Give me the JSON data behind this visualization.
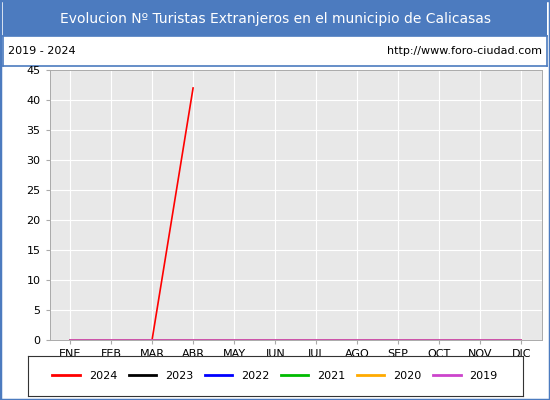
{
  "title": "Evolucion Nº Turistas Extranjeros en el municipio de Calicasas",
  "title_bg_color": "#4c7bbf",
  "title_text_color": "#ffffff",
  "subtitle_left": "2019 - 2024",
  "subtitle_right": "http://www.foro-ciudad.com",
  "subtitle_bg_color": "#ffffff",
  "subtitle_text_color": "#000000",
  "plot_bg_color": "#e8e8e8",
  "x_labels": [
    "ENE",
    "FEB",
    "MAR",
    "ABR",
    "MAY",
    "JUN",
    "JUL",
    "AGO",
    "SEP",
    "OCT",
    "NOV",
    "DIC"
  ],
  "ylim": [
    0,
    45
  ],
  "yticks": [
    0,
    5,
    10,
    15,
    20,
    25,
    30,
    35,
    40,
    45
  ],
  "series": [
    {
      "label": "2024",
      "color": "#ff0000",
      "linewidth": 1.2,
      "data": [
        null,
        null,
        0,
        42,
        null,
        null,
        null,
        null,
        null,
        null,
        null,
        null
      ]
    },
    {
      "label": "2023",
      "color": "#000000",
      "linewidth": 1.2,
      "data": [
        0,
        0,
        0,
        0,
        0,
        0,
        0,
        0,
        0,
        0,
        0,
        0
      ]
    },
    {
      "label": "2022",
      "color": "#0000ff",
      "linewidth": 1.2,
      "data": [
        0,
        0,
        0,
        0,
        0,
        0,
        0,
        0,
        0,
        0,
        0,
        0
      ]
    },
    {
      "label": "2021",
      "color": "#00bb00",
      "linewidth": 1.2,
      "data": [
        0,
        0,
        0,
        0,
        0,
        0,
        0,
        0,
        0,
        0,
        0,
        0
      ]
    },
    {
      "label": "2020",
      "color": "#ffaa00",
      "linewidth": 1.2,
      "data": [
        0,
        0,
        0,
        0,
        0,
        0,
        0,
        0,
        0,
        0,
        0,
        0
      ]
    },
    {
      "label": "2019",
      "color": "#cc44cc",
      "linewidth": 1.2,
      "data": [
        0,
        0,
        0,
        0,
        0,
        0,
        0,
        0,
        0,
        0,
        0,
        0
      ]
    }
  ],
  "grid_color": "#ffffff",
  "outer_border_color": "#4c7bbf",
  "inner_border_color": "#aaaaaa",
  "legend_border_color": "#333333",
  "title_fontsize": 10,
  "subtitle_fontsize": 8,
  "tick_fontsize": 8,
  "legend_fontsize": 8
}
